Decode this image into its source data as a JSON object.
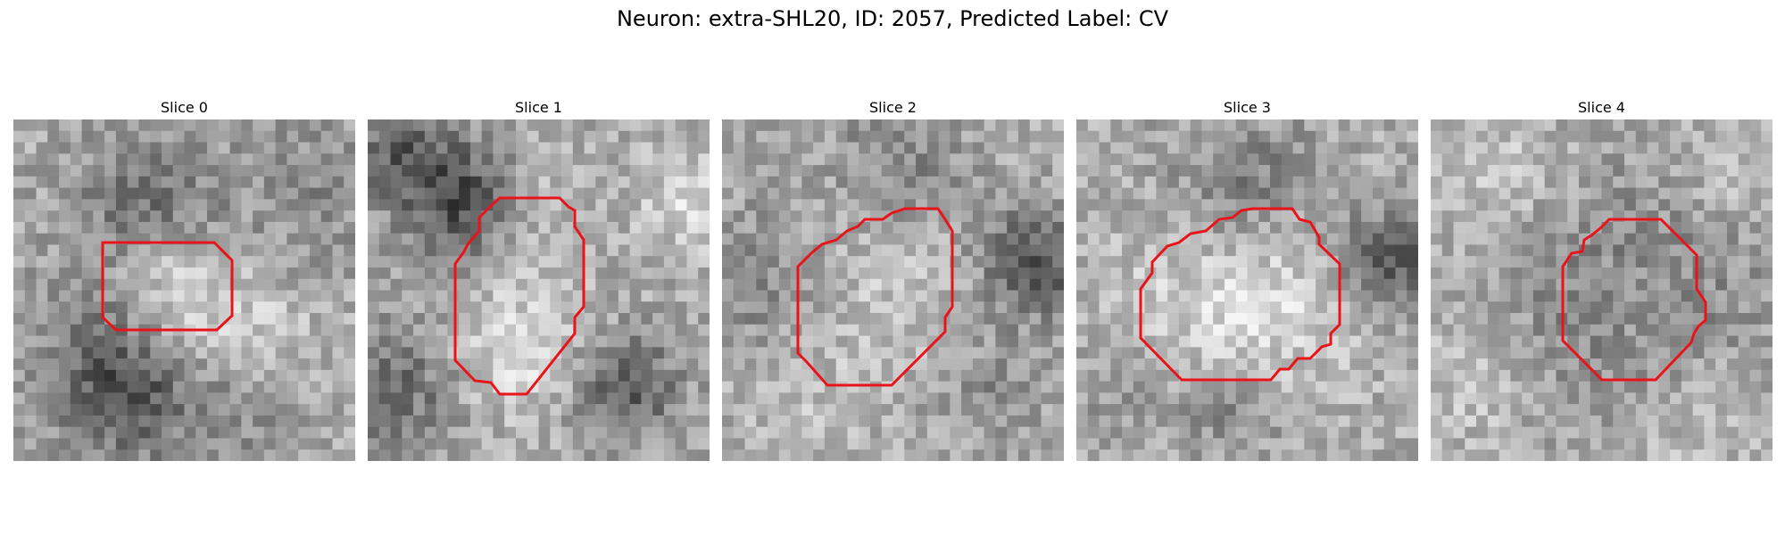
{
  "figure": {
    "title": "Neuron: extra-SHL20, ID: 2057, Predicted Label: CV"
  },
  "panels": [
    {
      "title": "Slice 0",
      "contour_color": "#e8141a"
    },
    {
      "title": "Slice 1",
      "contour_color": "#e8141a"
    },
    {
      "title": "Slice 2",
      "contour_color": "#e8141a"
    },
    {
      "title": "Slice 3",
      "contour_color": "#e8141a"
    },
    {
      "title": "Slice 4",
      "contour_color": "#e8141a"
    }
  ]
}
